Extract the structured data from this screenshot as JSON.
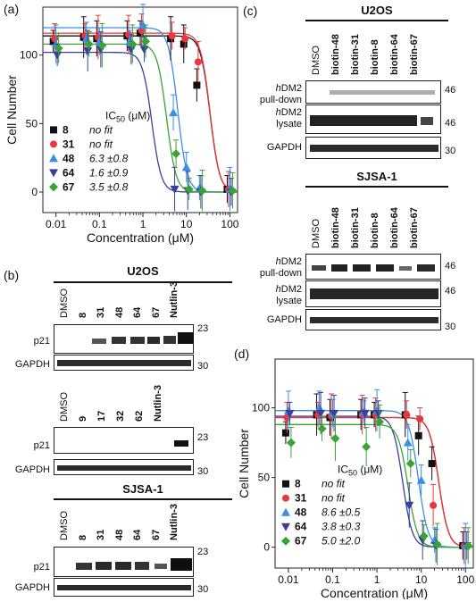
{
  "panels": {
    "a": {
      "label": "(a)",
      "chart_data": {
        "type": "scatter",
        "xlabel": "Concentration (μM)",
        "ylabel": "Cell Number",
        "xscale": "log",
        "xlim": [
          0.005,
          150
        ],
        "ylim": [
          -15,
          135
        ],
        "x_ticks": [
          "0.01",
          "0.1",
          "1",
          "10",
          "100"
        ],
        "y_ticks": [
          "0",
          "50",
          "100"
        ],
        "x": [
          0.01,
          0.05,
          0.1,
          0.5,
          1,
          5,
          10,
          20,
          100
        ],
        "series": [
          {
            "name": "8",
            "color": "#111111",
            "marker": "square",
            "values": [
              110,
              113,
              112,
              114,
              116,
              112,
              108,
              78,
              2
            ],
            "ic50": "no fit"
          },
          {
            "name": "31",
            "color": "#e8383d",
            "marker": "circle",
            "values": [
              112,
              114,
              113,
              115,
              118,
              114,
              112,
              95,
              2
            ],
            "ic50": "no fit"
          },
          {
            "name": "48",
            "color": "#3a8ee6",
            "marker": "triangle-up",
            "values": [
              108,
              112,
              110,
              110,
              122,
              58,
              18,
              3,
              2
            ],
            "ic50": "6.3 ±0.8"
          },
          {
            "name": "64",
            "color": "#3a3f9e",
            "marker": "triangle-down",
            "values": [
              100,
              103,
              104,
              104,
              104,
              2,
              1,
              0,
              0
            ],
            "ic50": "1.6 ±0.9"
          },
          {
            "name": "67",
            "color": "#3aa336",
            "marker": "diamond",
            "values": [
              105,
              108,
              107,
              108,
              110,
              28,
              2,
              1,
              1
            ],
            "ic50": "3.5 ±0.8"
          }
        ],
        "legend_title": "IC",
        "legend_sub": "50",
        "legend_unit": " (μM)"
      }
    },
    "d": {
      "label": "(d)",
      "chart_data": {
        "type": "scatter",
        "xlabel": "Concentration (μM)",
        "ylabel": "Cell Number",
        "xscale": "log",
        "xlim": [
          0.005,
          150
        ],
        "ylim": [
          -15,
          135
        ],
        "x_ticks": [
          "0.01",
          "0.1",
          "1",
          "10",
          "100"
        ],
        "y_ticks": [
          "0",
          "50",
          "100"
        ],
        "x": [
          0.01,
          0.05,
          0.1,
          0.5,
          1,
          5,
          10,
          20,
          100
        ],
        "series": [
          {
            "name": "8",
            "color": "#111111",
            "marker": "square",
            "values": [
              82,
              95,
              93,
              95,
              95,
              95,
              80,
              60,
              1
            ],
            "ic50": "no fit"
          },
          {
            "name": "31",
            "color": "#e8383d",
            "marker": "circle",
            "values": [
              93,
              95,
              94,
              95,
              95,
              95,
              92,
              30,
              1
            ],
            "ic50": "no fit"
          },
          {
            "name": "48",
            "color": "#3a8ee6",
            "marker": "triangle-up",
            "values": [
              98,
              100,
              96,
              97,
              98,
              75,
              48,
              5,
              1
            ],
            "ic50": "8.6 ±0.5"
          },
          {
            "name": "64",
            "color": "#3a3f9e",
            "marker": "triangle-down",
            "values": [
              96,
              96,
              96,
              96,
              96,
              30,
              5,
              1,
              1
            ],
            "ic50": "3.8 ±0.3"
          },
          {
            "name": "67",
            "color": "#3aa336",
            "marker": "diamond",
            "values": [
              75,
              85,
              78,
              72,
              90,
              60,
              8,
              2,
              1
            ],
            "ic50": "5.0 ±2.0"
          }
        ],
        "legend_title": "IC",
        "legend_sub": "50",
        "legend_unit": " (μM)"
      }
    },
    "b": {
      "label": "(b)",
      "top_cell": "U2OS",
      "top_lanes_1": [
        "DMSO",
        "8",
        "31",
        "48",
        "64",
        "67",
        "Nutlin-3"
      ],
      "top_rows_1": [
        "p21",
        "GAPDH"
      ],
      "top_mw_1": [
        "23",
        "30"
      ],
      "top_lanes_2": [
        "DMSO",
        "9",
        "17",
        "32",
        "62",
        "Nutlin-3"
      ],
      "top_rows_2": [
        "p21",
        "GAPDH"
      ],
      "top_mw_2": [
        "23",
        "30"
      ],
      "bottom_cell": "SJSA-1",
      "bottom_lanes": [
        "DMSO",
        "8",
        "31",
        "48",
        "64",
        "67",
        "Nutlin-3"
      ],
      "bottom_rows": [
        "p21",
        "GAPDH"
      ],
      "bottom_mw": [
        "23",
        "30"
      ]
    },
    "c": {
      "label": "(c)",
      "top_cell": "U2OS",
      "top_lanes": [
        "DMSO",
        "biotin-48",
        "biotin-31",
        "biotin-8",
        "biotin-64",
        "biotin-67"
      ],
      "top_rows": [
        {
          "prefix": "h",
          "line1": "DM2",
          "line2": "pull-down"
        },
        {
          "prefix": "h",
          "line1": "DM2",
          "line2": "lysate"
        },
        {
          "prefix": "",
          "line1": "GAPDH",
          "line2": ""
        }
      ],
      "top_mw": [
        "46",
        "46",
        "30"
      ],
      "bottom_cell": "SJSA-1",
      "bottom_lanes": [
        "DMSO",
        "biotin-48",
        "biotin-31",
        "biotin-8",
        "biotin-64",
        "biotin-67"
      ],
      "bottom_rows": [
        {
          "prefix": "h",
          "line1": "DM2",
          "line2": "pull-down"
        },
        {
          "prefix": "h",
          "line1": "DM2",
          "line2": "lysate"
        },
        {
          "prefix": "",
          "line1": "GAPDH",
          "line2": ""
        }
      ],
      "bottom_mw": [
        "46",
        "46",
        "30"
      ]
    }
  }
}
